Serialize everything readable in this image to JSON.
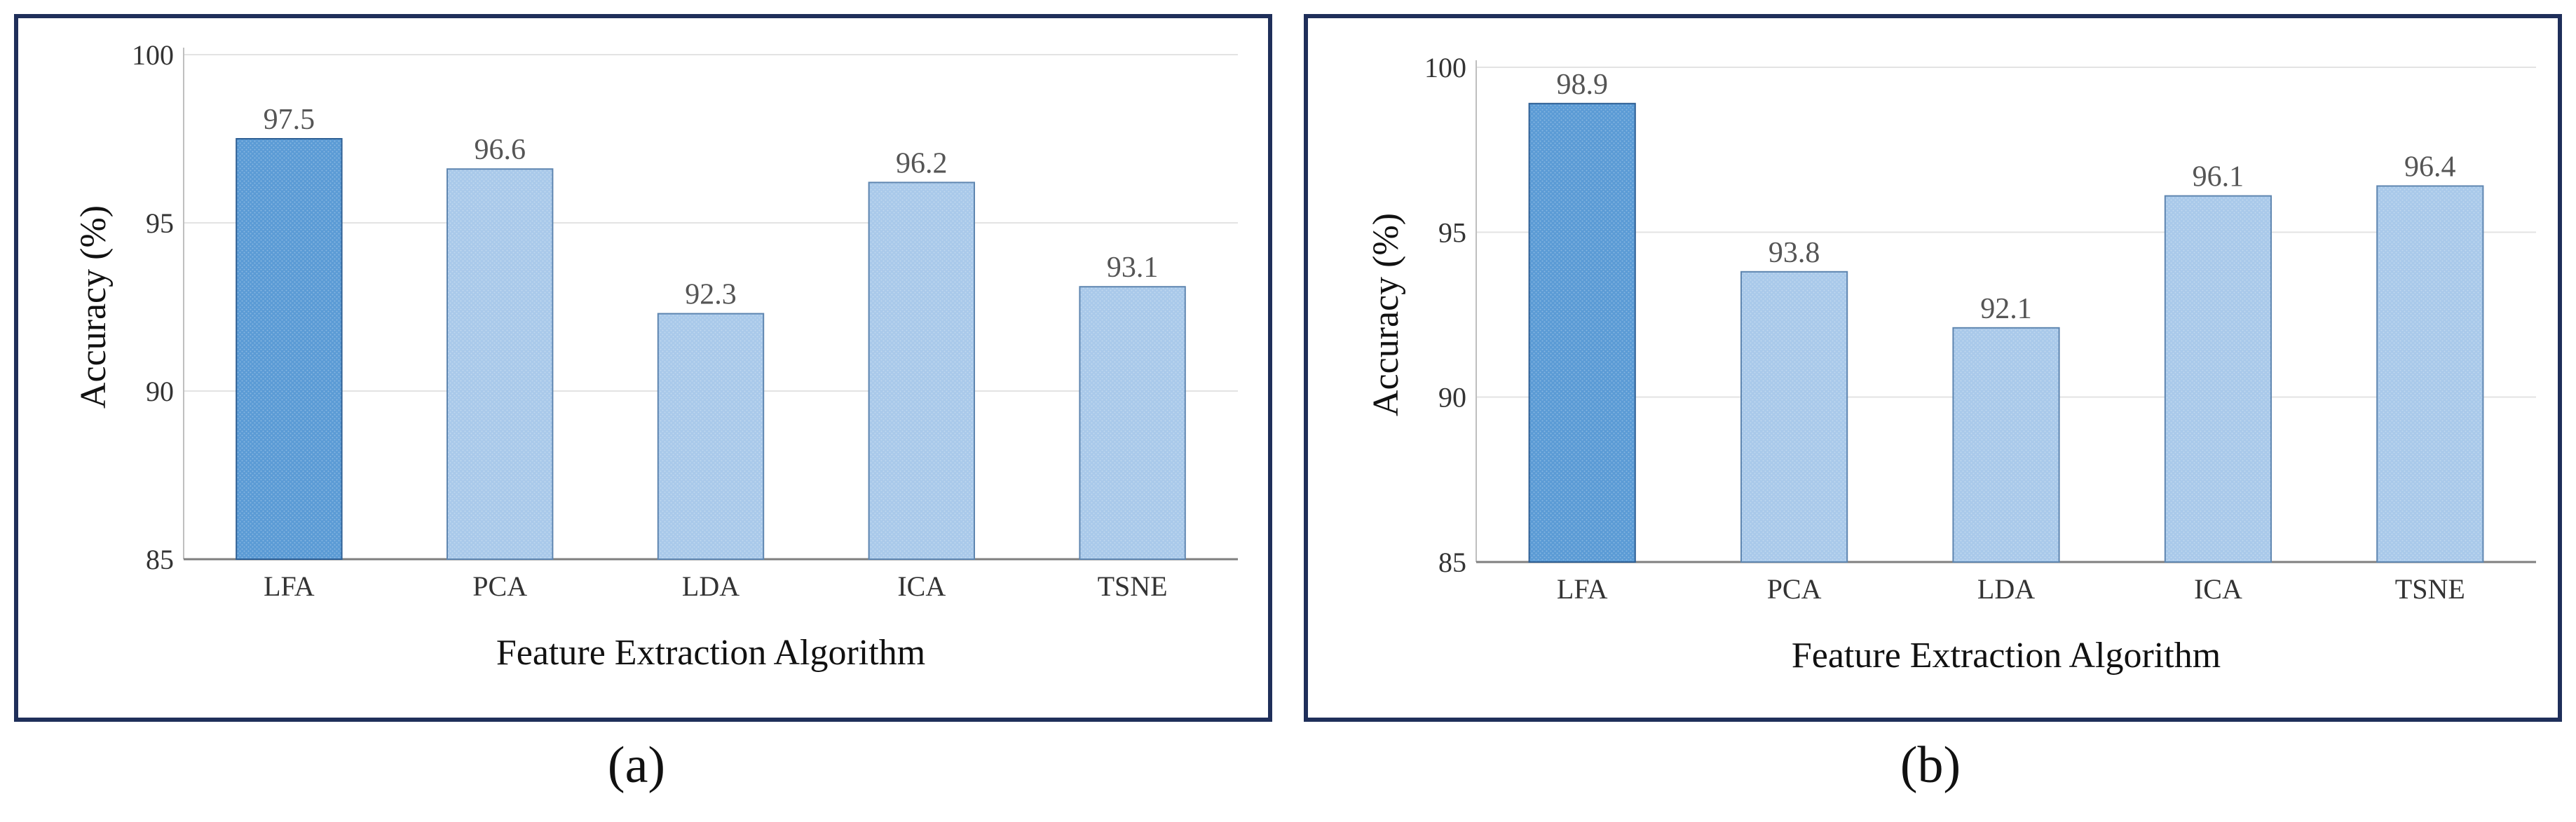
{
  "chart_data": [
    {
      "type": "bar",
      "panel": "a",
      "categories": [
        "LFA",
        "PCA",
        "LDA",
        "ICA",
        "TSNE"
      ],
      "values": [
        97.5,
        96.6,
        92.3,
        96.2,
        93.1
      ],
      "value_labels": [
        "97.5",
        "96.6",
        "92.3",
        "96.2",
        "93.1"
      ],
      "yticks": [
        "85",
        "90",
        "95",
        "100"
      ],
      "ylim": [
        85,
        100
      ],
      "xlabel": "Feature Extraction Algorithm",
      "ylabel": "Accuracy (%)",
      "grid": true,
      "highlight_color": "#5b9bd5",
      "bar_color": "#a9c9ea",
      "caption": "(a)"
    },
    {
      "type": "bar",
      "panel": "b",
      "categories": [
        "LFA",
        "PCA",
        "LDA",
        "ICA",
        "TSNE"
      ],
      "values": [
        98.9,
        93.8,
        92.1,
        96.1,
        96.4
      ],
      "value_labels": [
        "98.9",
        "93.8",
        "92.1",
        "96.1",
        "96.4"
      ],
      "yticks": [
        "85",
        "90",
        "95",
        "100"
      ],
      "ylim": [
        85,
        100
      ],
      "xlabel": "Feature Extraction Algorithm",
      "ylabel": "Accuracy (%)",
      "grid": true,
      "highlight_color": "#5b9bd5",
      "bar_color": "#a9c9ea",
      "caption": "(b)"
    }
  ]
}
